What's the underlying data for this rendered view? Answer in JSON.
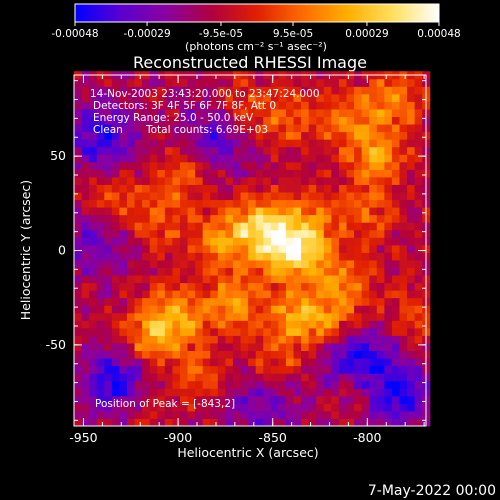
{
  "colorbar": {
    "ticks": [
      "-0.00048",
      "-0.00029",
      "-9.5e-05",
      "9.5e-05",
      "0.00029",
      "0.00048"
    ],
    "tick_values": [
      -0.00048,
      -0.00029,
      -9.5e-05,
      9.5e-05,
      0.00029,
      0.00048
    ],
    "range": [
      -0.00048,
      0.00048
    ],
    "units": "(photons cm⁻² s⁻¹ asec⁻²)",
    "colors": [
      "#0000ff",
      "#5a00d0",
      "#8a00a0",
      "#b00040",
      "#e02000",
      "#ff6a00",
      "#ffb000",
      "#ffe060",
      "#ffffff"
    ]
  },
  "title": "Reconstructed RHESSI Image",
  "info": {
    "time": "14-Nov-2003 23:43:20.000 to 23:47:24.000",
    "detectors": "Detectors: 3F 4F 5F 6F 7F 8F, Att 0",
    "energy": "Energy Range: 25.0 - 50.0 keV",
    "clean": "Clean",
    "counts": "Total counts: 6.69E+03"
  },
  "peak": "Position of Peak = [-843,2]",
  "footer_date": "7-May-2022 00:00",
  "chart_data": {
    "type": "heatmap",
    "title": "Reconstructed RHESSI Image",
    "xlabel": "Heliocentric X (arcsec)",
    "ylabel": "Heliocentric Y (arcsec)",
    "xlim": [
      -955,
      -769
    ],
    "ylim": [
      -93,
      93
    ],
    "x_ticks": [
      -950,
      -900,
      -850,
      -800
    ],
    "y_ticks": [
      50,
      0,
      -50
    ],
    "x_tick_labels": [
      "-950",
      "-900",
      "-850",
      "-800"
    ],
    "y_tick_labels": [
      "50",
      "0",
      "-50"
    ],
    "peak_position": [
      -843,
      2
    ],
    "hotspots": [
      {
        "x": -843,
        "y": 2,
        "amp": 0.00048
      },
      {
        "x": -858,
        "y": 14,
        "amp": 0.00032
      },
      {
        "x": -877,
        "y": 5,
        "amp": 0.00028
      },
      {
        "x": -872,
        "y": -28,
        "amp": 0.0003
      },
      {
        "x": -903,
        "y": -35,
        "amp": 0.00035
      },
      {
        "x": -917,
        "y": -48,
        "amp": 0.00026
      },
      {
        "x": -840,
        "y": -33,
        "amp": 0.00027
      },
      {
        "x": -820,
        "y": -40,
        "amp": 0.0003
      },
      {
        "x": -810,
        "y": -20,
        "amp": 0.00022
      },
      {
        "x": -795,
        "y": 50,
        "amp": 0.0003
      },
      {
        "x": -785,
        "y": 80,
        "amp": 0.00026
      },
      {
        "x": -810,
        "y": 70,
        "amp": 0.00022
      },
      {
        "x": -840,
        "y": 70,
        "amp": 0.00018
      },
      {
        "x": -865,
        "y": 75,
        "amp": 0.0002
      },
      {
        "x": -935,
        "y": 27,
        "amp": 0.0002
      },
      {
        "x": -898,
        "y": 40,
        "amp": 0.00022
      },
      {
        "x": -910,
        "y": 15,
        "amp": 0.00018
      },
      {
        "x": -830,
        "y": 18,
        "amp": 0.0002
      },
      {
        "x": -825,
        "y": -5,
        "amp": 0.00018
      },
      {
        "x": -800,
        "y": 20,
        "amp": 0.00018
      },
      {
        "x": -848,
        "y": -60,
        "amp": 0.0002
      },
      {
        "x": -805,
        "y": -70,
        "amp": 0.00016
      },
      {
        "x": -920,
        "y": -80,
        "amp": 0.00018
      },
      {
        "x": -890,
        "y": -65,
        "amp": 0.00018
      },
      {
        "x": -775,
        "y": -35,
        "amp": 0.00018
      }
    ],
    "cold_spots": [
      {
        "x": -930,
        "y": -70,
        "amp": -0.0004
      },
      {
        "x": -940,
        "y": 60,
        "amp": -0.0003
      },
      {
        "x": -808,
        "y": -55,
        "amp": -0.0004
      },
      {
        "x": -785,
        "y": -75,
        "amp": -0.00035
      },
      {
        "x": -880,
        "y": 60,
        "amp": -0.00025
      },
      {
        "x": -855,
        "y": -80,
        "amp": -0.00022
      },
      {
        "x": -945,
        "y": 5,
        "amp": -0.0002
      }
    ]
  }
}
